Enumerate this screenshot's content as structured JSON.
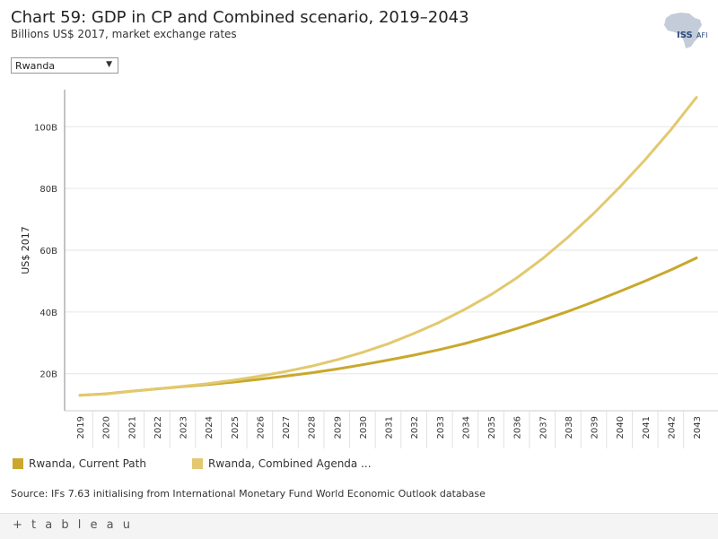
{
  "header": {
    "title": "Chart 59: GDP in CP and Combined scenario, 2019–2043",
    "subtitle": "Billions US$ 2017, market exchange rates",
    "logo_text": "ISS",
    "logo_suffix": "AFI"
  },
  "filter": {
    "selected": "Rwanda",
    "icon": "chevron-down-icon"
  },
  "colors": {
    "current_path": "#c9a82c",
    "combined": "#e2c96f",
    "grid": "#e6e6e6",
    "axis": "#888888"
  },
  "chart_data": {
    "type": "line",
    "title": "Chart 59: GDP in CP and Combined scenario, 2019–2043",
    "ylabel": "US$ 2017",
    "xlabel": "",
    "ylim": [
      8,
      112
    ],
    "yticks": [
      20,
      40,
      60,
      80,
      100
    ],
    "ytick_labels": [
      "20B",
      "40B",
      "60B",
      "80B",
      "100B"
    ],
    "grid": true,
    "legend_position": "bottom-left",
    "x": [
      "2019",
      "2020",
      "2021",
      "2022",
      "2023",
      "2024",
      "2025",
      "2026",
      "2027",
      "2028",
      "2029",
      "2030",
      "2031",
      "2032",
      "2033",
      "2034",
      "2035",
      "2036",
      "2037",
      "2038",
      "2039",
      "2040",
      "2041",
      "2042",
      "2043"
    ],
    "series": [
      {
        "name": "Rwanda, Current Path",
        "color": "#c9a82c",
        "values": [
          13.0,
          13.5,
          14.3,
          15.1,
          15.8,
          16.5,
          17.3,
          18.2,
          19.2,
          20.3,
          21.5,
          22.9,
          24.4,
          26.0,
          27.8,
          29.8,
          32.1,
          34.6,
          37.3,
          40.2,
          43.3,
          46.6,
          50.0,
          53.6,
          57.5
        ]
      },
      {
        "name": "Rwanda, Combined Agenda ...",
        "color": "#e2c96f",
        "values": [
          13.0,
          13.4,
          14.3,
          15.1,
          15.9,
          16.8,
          17.9,
          19.2,
          20.7,
          22.4,
          24.5,
          26.9,
          29.7,
          33.0,
          36.7,
          40.9,
          45.6,
          51.0,
          57.2,
          64.2,
          71.9,
          80.3,
          89.3,
          99.0,
          109.5
        ]
      }
    ]
  },
  "legend": [
    {
      "label": "Rwanda, Current Path",
      "color": "#c9a82c"
    },
    {
      "label": "Rwanda, Combined Agenda ...",
      "color": "#e2c96f"
    }
  ],
  "source": "Source: IFs 7.63 initialising from International Monetary Fund World Economic Outlook database",
  "footer": {
    "brand": "+ t a b l e a u"
  }
}
